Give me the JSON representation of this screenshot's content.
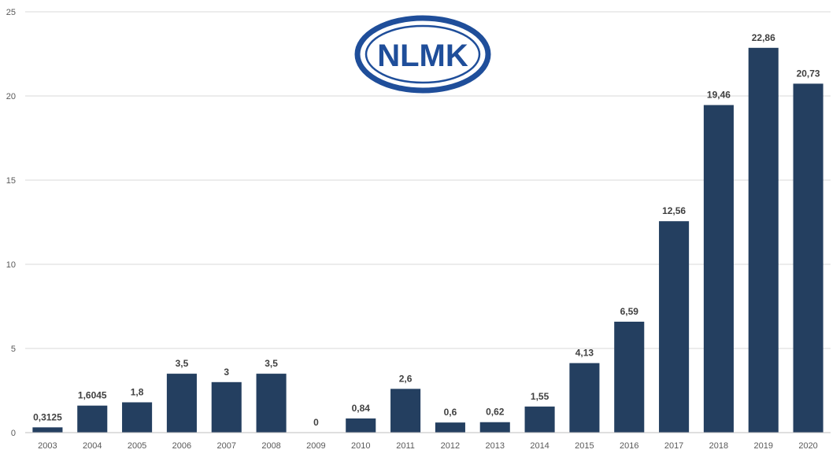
{
  "logo": {
    "text": "NLMK",
    "color": "#1f4e9a"
  },
  "chart_data": {
    "type": "bar",
    "categories": [
      "2003",
      "2004",
      "2005",
      "2006",
      "2007",
      "2008",
      "2009",
      "2010",
      "2011",
      "2012",
      "2013",
      "2014",
      "2015",
      "2016",
      "2017",
      "2018",
      "2019",
      "2020"
    ],
    "values": [
      0.3125,
      1.6045,
      1.8,
      3.5,
      3,
      3.5,
      0,
      0.84,
      2.6,
      0.6,
      0.62,
      1.55,
      4.13,
      6.59,
      12.56,
      19.46,
      22.86,
      20.73
    ],
    "value_labels": [
      "0,3125",
      "1,6045",
      "1,8",
      "3,5",
      "3",
      "3,5",
      "0",
      "0,84",
      "2,6",
      "0,6",
      "0,62",
      "1,55",
      "4,13",
      "6,59",
      "12,56",
      "19,46",
      "22,86",
      "20,73"
    ],
    "yticks": [
      "0",
      "5",
      "10",
      "15",
      "20",
      "25"
    ],
    "ylim": [
      0,
      25
    ],
    "title": "",
    "xlabel": "",
    "ylabel": "",
    "grid": true,
    "bar_color": "#243f60"
  }
}
